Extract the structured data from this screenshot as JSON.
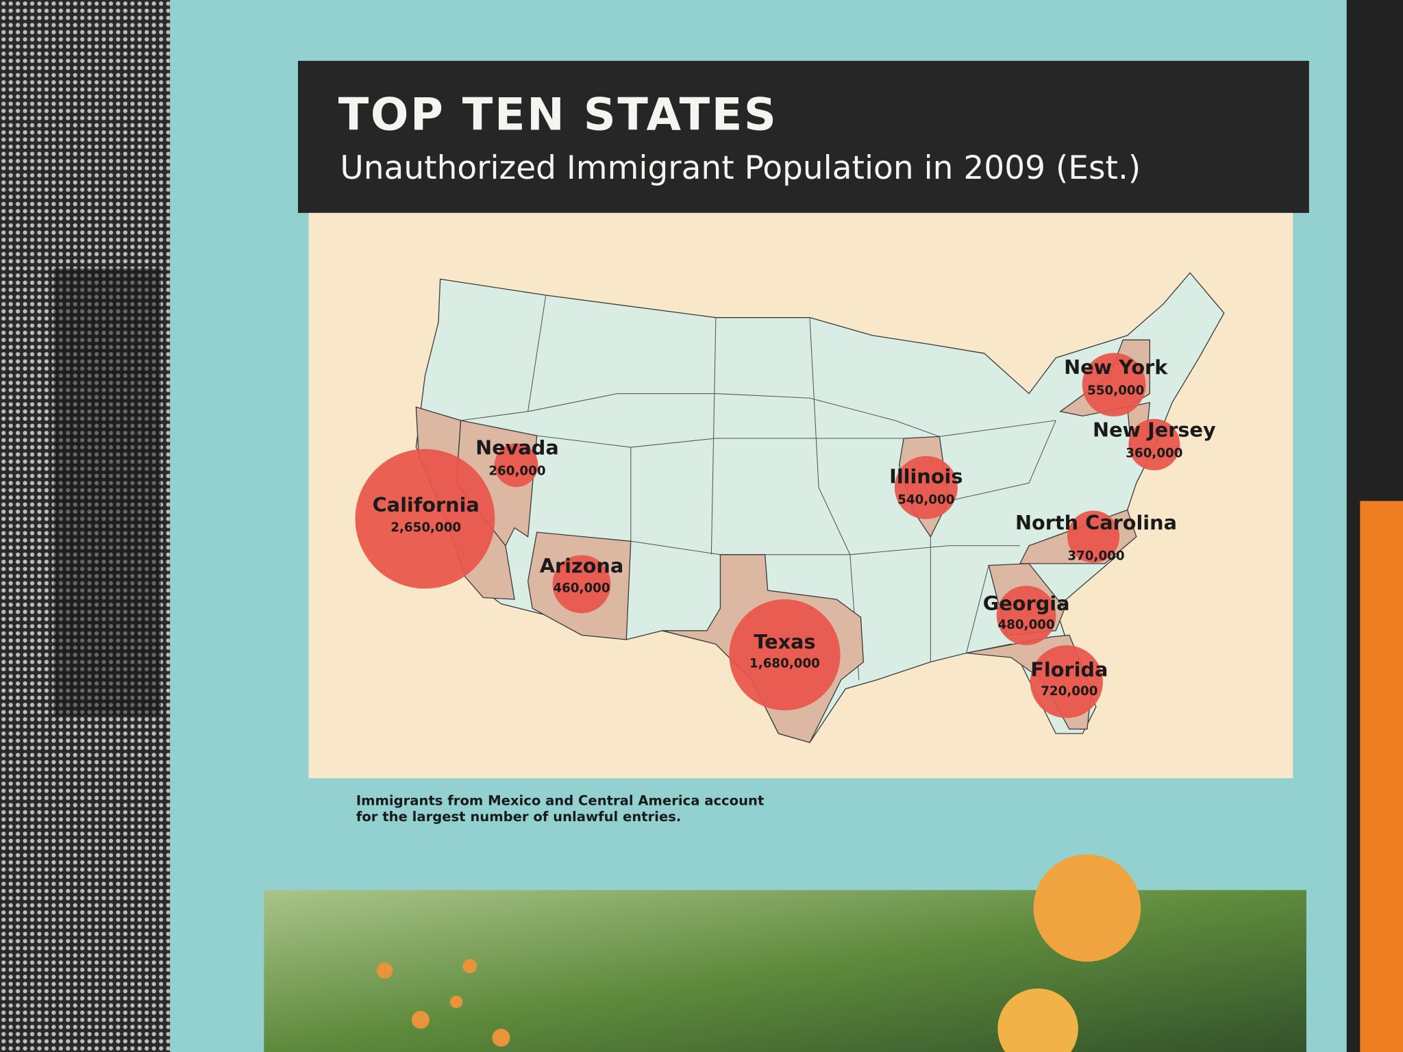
{
  "title": "TOP TEN STATES",
  "subtitle": "Unauthorized Immigrant Population in 2009 (Est.)",
  "map": {
    "type": "bubble-map",
    "states": [
      {
        "name": "California",
        "value": 2650000,
        "value_label": "2,650,000"
      },
      {
        "name": "Nevada",
        "value": 260000,
        "value_label": "260,000"
      },
      {
        "name": "Arizona",
        "value": 460000,
        "value_label": "460,000"
      },
      {
        "name": "Texas",
        "value": 1680000,
        "value_label": "1,680,000"
      },
      {
        "name": "Illinois",
        "value": 540000,
        "value_label": "540,000"
      },
      {
        "name": "New York",
        "value": 550000,
        "value_label": "550,000"
      },
      {
        "name": "New Jersey",
        "value": 360000,
        "value_label": "360,000"
      },
      {
        "name": "North Carolina",
        "value": 370000,
        "value_label": "370,000"
      },
      {
        "name": "Georgia",
        "value": 480000,
        "value_label": "480,000"
      },
      {
        "name": "Florida",
        "value": 720000,
        "value_label": "720,000"
      }
    ]
  },
  "note": [
    "Immigrants from Mexico and Central America account",
    "for the largest number of unlawful entries."
  ]
}
